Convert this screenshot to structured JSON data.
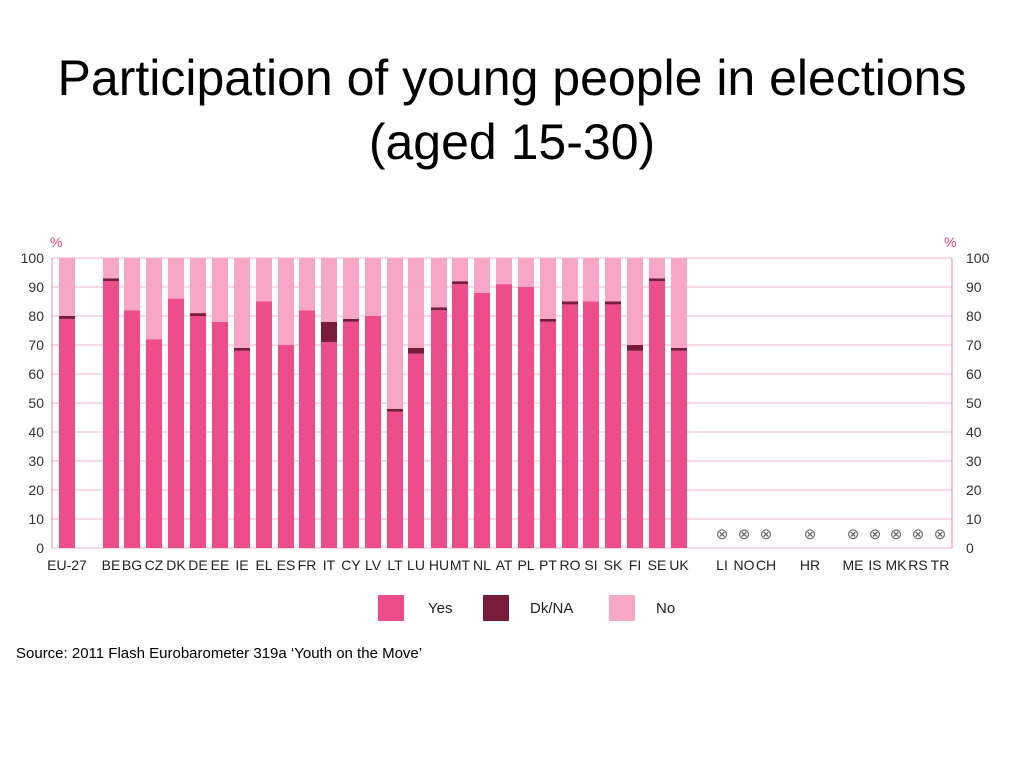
{
  "title": "Participation of young people in elections (aged 15-30)",
  "source": "Source: 2011 Flash Eurobarometer 319a ‘Youth on the Move’",
  "chart_data": {
    "type": "bar",
    "stacked": true,
    "unit_label": "%",
    "ylim": [
      0,
      100
    ],
    "yticks": [
      0,
      10,
      20,
      30,
      40,
      50,
      60,
      70,
      80,
      90,
      100
    ],
    "grid": true,
    "legend_position": "bottom",
    "colors": {
      "Yes": "#ee4d8c",
      "Dk/NA": "#7a1b3c",
      "No": "#f7a6c6",
      "axis": "#e8899f",
      "grid": "#f0b9c8"
    },
    "categories": [
      "EU-27",
      "BE",
      "BG",
      "CZ",
      "DK",
      "DE",
      "EE",
      "IE",
      "EL",
      "ES",
      "FR",
      "IT",
      "CY",
      "LV",
      "LT",
      "LU",
      "HU",
      "MT",
      "NL",
      "AT",
      "PL",
      "PT",
      "RO",
      "SI",
      "SK",
      "FI",
      "SE",
      "UK",
      "LI",
      "NO",
      "CH",
      "HR",
      "ME",
      "IS",
      "MK",
      "RS",
      "TR"
    ],
    "not_available_marker": "⊗",
    "not_available": [
      "LI",
      "NO",
      "CH",
      "HR",
      "ME",
      "IS",
      "MK",
      "RS",
      "TR"
    ],
    "series": [
      {
        "name": "Yes",
        "values": [
          79,
          92,
          82,
          72,
          86,
          80,
          78,
          68,
          85,
          70,
          82,
          71,
          78,
          80,
          47,
          67,
          82,
          91,
          88,
          91,
          90,
          78,
          84,
          85,
          84,
          68,
          92,
          68,
          null,
          null,
          null,
          null,
          null,
          null,
          null,
          null,
          null
        ]
      },
      {
        "name": "Dk/NA",
        "values": [
          1,
          1,
          0,
          0,
          0,
          1,
          0,
          1,
          0,
          0,
          0,
          7,
          1,
          0,
          1,
          2,
          1,
          1,
          0,
          0,
          0,
          1,
          1,
          0,
          1,
          2,
          1,
          1,
          null,
          null,
          null,
          null,
          null,
          null,
          null,
          null,
          null
        ]
      },
      {
        "name": "No",
        "values": [
          20,
          7,
          18,
          28,
          14,
          19,
          22,
          31,
          15,
          30,
          18,
          22,
          21,
          20,
          52,
          31,
          17,
          8,
          12,
          9,
          10,
          21,
          15,
          15,
          15,
          30,
          7,
          31,
          null,
          null,
          null,
          null,
          null,
          null,
          null,
          null,
          null
        ]
      }
    ]
  }
}
